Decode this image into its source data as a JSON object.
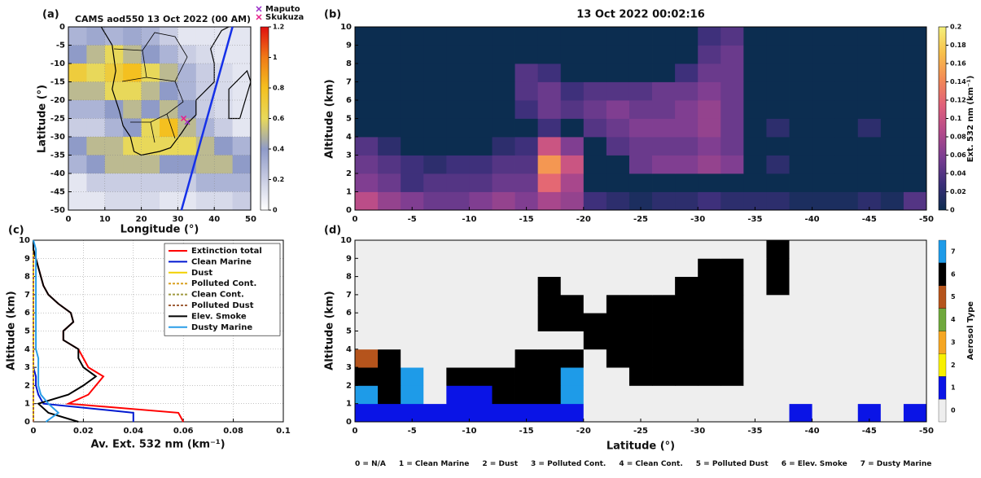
{
  "chart_data": [
    {
      "type": "heatmap",
      "panel_label": "(a)",
      "title": "CAMS aod550 13 Oct 2022 (00 AM)",
      "xlabel": "Longitude (°)",
      "ylabel": "Latitude (°)",
      "x": [
        2.5,
        7.5,
        12.5,
        17.5,
        22.5,
        27.5,
        32.5,
        37.5,
        42.5,
        47.5
      ],
      "y": [
        -2.5,
        -7.5,
        -12.5,
        -17.5,
        -22.5,
        -27.5,
        -32.5,
        -37.5,
        -42.5,
        -47.5
      ],
      "z": [
        [
          0.3,
          0.35,
          0.3,
          0.35,
          0.3,
          0.2,
          0.1,
          0.1,
          0.1,
          0.1
        ],
        [
          0.4,
          0.5,
          0.6,
          0.5,
          0.4,
          0.3,
          0.2,
          0.15,
          0.1,
          0.1
        ],
        [
          0.7,
          0.6,
          0.7,
          0.8,
          0.6,
          0.5,
          0.3,
          0.2,
          0.15,
          0.1
        ],
        [
          0.5,
          0.5,
          0.6,
          0.6,
          0.5,
          0.4,
          0.3,
          0.2,
          0.15,
          0.1
        ],
        [
          0.3,
          0.3,
          0.4,
          0.5,
          0.4,
          0.5,
          0.4,
          0.2,
          0.15,
          0.1
        ],
        [
          0.2,
          0.2,
          0.3,
          0.4,
          0.6,
          0.8,
          0.5,
          0.3,
          0.2,
          0.1
        ],
        [
          0.4,
          0.5,
          0.5,
          0.6,
          0.6,
          0.6,
          0.6,
          0.5,
          0.4,
          0.3
        ],
        [
          0.3,
          0.4,
          0.5,
          0.5,
          0.5,
          0.4,
          0.4,
          0.5,
          0.5,
          0.4
        ],
        [
          0.1,
          0.2,
          0.2,
          0.2,
          0.2,
          0.2,
          0.2,
          0.3,
          0.3,
          0.3
        ],
        [
          0.1,
          0.1,
          0.15,
          0.15,
          0.15,
          0.1,
          0.1,
          0.15,
          0.15,
          0.2
        ]
      ],
      "xlim": [
        0,
        50
      ],
      "xticks": [
        0,
        10,
        20,
        30,
        40,
        50
      ],
      "ylim": [
        -50,
        0
      ],
      "yticks": [
        0,
        -5,
        -10,
        -15,
        -20,
        -25,
        -30,
        -35,
        -40,
        -45,
        -50
      ],
      "grid": true,
      "clim": [
        0,
        1.2
      ],
      "cticks": [
        0,
        0.2,
        0.4,
        0.6,
        0.8,
        1,
        1.2
      ],
      "colormap": [
        "#ffffff",
        "#c9cde3",
        "#8f9bc8",
        "#e8d85a",
        "#f4c020",
        "#f07a18",
        "#e01010"
      ],
      "markers": [
        {
          "name": "Maputo",
          "color": "#9a2fc9",
          "x": 32.6,
          "y": -25.97
        },
        {
          "name": "Skukuza",
          "color": "#e8208c",
          "x": 31.6,
          "y": -24.99
        }
      ],
      "track": {
        "color": "#1530e8",
        "x": [
          31,
          45
        ],
        "y": [
          -50,
          0
        ]
      }
    },
    {
      "type": "heatmap",
      "panel_label": "(b)",
      "title": "13 Oct 2022 00:02:16",
      "ylabel": "Altitude (km)",
      "x": [
        -1,
        -3,
        -5,
        -7,
        -9,
        -11,
        -13,
        -15,
        -17,
        -19,
        -21,
        -23,
        -25,
        -27,
        -29,
        -31,
        -33,
        -35,
        -37,
        -39,
        -41,
        -43,
        -45,
        -47,
        -49
      ],
      "y": [
        0.5,
        1.5,
        2.5,
        3.5,
        4.5,
        5.5,
        6.5,
        7.5,
        8.5,
        9.5
      ],
      "z": [
        [
          0.09,
          0.07,
          0.06,
          0.05,
          0.05,
          0.06,
          0.07,
          0.06,
          0.08,
          0.07,
          0.03,
          0.02,
          0.01,
          0.02,
          0.02,
          0.03,
          0.02,
          0.02,
          0.02,
          0.01,
          0.01,
          0.01,
          0.02,
          0.01,
          0.04
        ],
        [
          0.06,
          0.05,
          0.03,
          0.04,
          0.04,
          0.04,
          0.05,
          0.05,
          0.12,
          0.08,
          0,
          0,
          0,
          0,
          0,
          0,
          0,
          0,
          0,
          0,
          0,
          0,
          0,
          0,
          0
        ],
        [
          0.05,
          0.04,
          0.03,
          0.02,
          0.03,
          0.03,
          0.04,
          0.04,
          0.15,
          0.1,
          0,
          0,
          0.05,
          0.06,
          0.06,
          0.07,
          0.06,
          0,
          0.02,
          0,
          0,
          0,
          0,
          0,
          0
        ],
        [
          0.04,
          0.02,
          0,
          0,
          0,
          0,
          0.02,
          0.03,
          0.1,
          0.06,
          0,
          0.04,
          0.05,
          0.05,
          0.05,
          0.06,
          0.05,
          0,
          0,
          0,
          0,
          0,
          0,
          0,
          0
        ],
        [
          0,
          0,
          0,
          0,
          0,
          0,
          0,
          0,
          0.03,
          0,
          0.04,
          0.05,
          0.06,
          0.06,
          0.06,
          0.07,
          0.05,
          0,
          0.02,
          0,
          0,
          0,
          0.02,
          0,
          0
        ],
        [
          0,
          0,
          0,
          0,
          0,
          0,
          0,
          0.03,
          0.05,
          0.04,
          0.05,
          0.06,
          0.05,
          0.05,
          0.06,
          0.07,
          0.05,
          0,
          0,
          0,
          0,
          0,
          0,
          0,
          0
        ],
        [
          0,
          0,
          0,
          0,
          0,
          0,
          0,
          0.04,
          0.05,
          0.03,
          0.04,
          0.04,
          0.04,
          0.05,
          0.05,
          0.06,
          0.05,
          0,
          0,
          0,
          0,
          0,
          0,
          0,
          0
        ],
        [
          0,
          0,
          0,
          0,
          0,
          0,
          0,
          0.04,
          0.03,
          0,
          0,
          0,
          0,
          0,
          0.03,
          0.05,
          0.05,
          0,
          0,
          0,
          0,
          0,
          0,
          0,
          0
        ],
        [
          0,
          0,
          0,
          0,
          0,
          0,
          0,
          0,
          0,
          0,
          0,
          0,
          0,
          0,
          0,
          0.04,
          0.05,
          0,
          0,
          0,
          0,
          0,
          0,
          0,
          0
        ],
        [
          0,
          0,
          0,
          0,
          0,
          0,
          0,
          0,
          0,
          0,
          0,
          0,
          0,
          0,
          0,
          0.03,
          0.04,
          0,
          0,
          0,
          0,
          0,
          0,
          0,
          0
        ]
      ],
      "xlim": [
        0,
        -50
      ],
      "xticks": [
        0,
        -5,
        -10,
        -15,
        -20,
        -25,
        -30,
        -35,
        -40,
        -45,
        -50
      ],
      "ylim": [
        0,
        10
      ],
      "yticks": [
        0,
        1,
        2,
        3,
        4,
        5,
        6,
        7,
        8,
        9,
        10
      ],
      "clim": [
        0,
        0.2
      ],
      "cticks": [
        0,
        0.02,
        0.04,
        0.06,
        0.08,
        0.1,
        0.12,
        0.14,
        0.16,
        0.18,
        0.2
      ],
      "colorbar_label": "Ext. 532 nm (km⁻¹)",
      "colormap": [
        "#0c2d50",
        "#3b2f7a",
        "#7a3d92",
        "#b44a8a",
        "#e0607a",
        "#f38a55",
        "#f8c04a",
        "#f4f07a"
      ]
    },
    {
      "type": "line",
      "panel_label": "(c)",
      "xlabel": "Av. Ext. 532 nm  (km⁻¹)",
      "ylabel": "Altitude (km)",
      "y": [
        0,
        0.5,
        1,
        1.5,
        2,
        2.5,
        3,
        3.5,
        4,
        4.5,
        5,
        5.5,
        6,
        6.5,
        7,
        7.5,
        8,
        8.5,
        9,
        9.5,
        10
      ],
      "series": [
        {
          "name": "Extinction total",
          "color": "#ff0000",
          "dashed": false,
          "values": [
            0.06,
            0.058,
            0.014,
            0.022,
            0.025,
            0.028,
            0.022,
            0.02,
            0.018,
            0.012,
            0.012,
            0.016,
            0.015,
            0.01,
            0.006,
            0.004,
            0.003,
            0.002,
            0.001,
            0,
            0
          ]
        },
        {
          "name": "Clean Marine",
          "color": "#0018d0",
          "dashed": false,
          "values": [
            0.04,
            0.04,
            0.004,
            0.002,
            0.001,
            0.001,
            0,
            0,
            0,
            0,
            0,
            0,
            0,
            0,
            0,
            0,
            0,
            0,
            0,
            0,
            0
          ]
        },
        {
          "name": "Dust",
          "color": "#f2d000",
          "dashed": false,
          "values": [
            0,
            0,
            0,
            0,
            0,
            0,
            0,
            0,
            0,
            0,
            0,
            0,
            0,
            0,
            0,
            0,
            0,
            0,
            0,
            0,
            0
          ]
        },
        {
          "name": "Polluted Cont.",
          "color": "#d9a020",
          "dashed": true,
          "values": [
            0,
            0,
            0,
            0,
            0,
            0,
            0,
            0,
            0,
            0,
            0,
            0,
            0,
            0,
            0,
            0,
            0,
            0,
            0,
            0,
            0
          ]
        },
        {
          "name": "Clean Cont.",
          "color": "#a09a40",
          "dashed": true,
          "values": [
            0,
            0,
            0,
            0,
            0,
            0,
            0,
            0,
            0,
            0,
            0,
            0,
            0,
            0,
            0,
            0,
            0,
            0,
            0,
            0,
            0
          ]
        },
        {
          "name": "Polluted Dust",
          "color": "#a0603a",
          "dashed": true,
          "values": [
            0,
            0,
            0,
            0,
            0,
            0,
            0,
            0,
            0,
            0,
            0,
            0,
            0,
            0,
            0,
            0,
            0,
            0,
            0,
            0,
            0
          ]
        },
        {
          "name": "Elev. Smoke",
          "color": "#000000",
          "dashed": false,
          "values": [
            0.018,
            0.006,
            0.002,
            0.014,
            0.02,
            0.025,
            0.02,
            0.018,
            0.018,
            0.012,
            0.012,
            0.016,
            0.015,
            0.01,
            0.006,
            0.004,
            0.003,
            0.002,
            0.001,
            0,
            0
          ]
        },
        {
          "name": "Dusty Marine",
          "color": "#2a9ee8",
          "dashed": false,
          "values": [
            0.005,
            0.01,
            0.006,
            0.003,
            0.002,
            0.002,
            0.002,
            0.002,
            0.001,
            0.001,
            0.001,
            0.001,
            0.001,
            0.001,
            0.001,
            0.001,
            0.001,
            0.001,
            0.001,
            0.001,
            0
          ]
        }
      ],
      "xlim": [
        0,
        0.1
      ],
      "xticks": [
        0,
        0.02,
        0.04,
        0.06,
        0.08,
        0.1
      ],
      "ylim": [
        0,
        10
      ],
      "yticks": [
        0,
        1,
        2,
        3,
        4,
        5,
        6,
        7,
        8,
        9,
        10
      ],
      "grid": true,
      "legend": "upper right"
    },
    {
      "type": "categorical_heatmap",
      "panel_label": "(d)",
      "xlabel": "Latitude (°)",
      "ylabel": "Altitude (km)",
      "x": [
        -1,
        -3,
        -5,
        -7,
        -9,
        -11,
        -13,
        -15,
        -17,
        -19,
        -21,
        -23,
        -25,
        -27,
        -29,
        -31,
        -33,
        -35,
        -37,
        -39,
        -41,
        -43,
        -45,
        -47,
        -49
      ],
      "y": [
        0.5,
        1.5,
        2.5,
        3.5,
        4.5,
        5.5,
        6.5,
        7.5,
        8.5,
        9.5
      ],
      "z": [
        [
          1,
          1,
          1,
          1,
          1,
          1,
          1,
          1,
          1,
          1,
          0,
          0,
          0,
          0,
          0,
          0,
          0,
          0,
          0,
          1,
          0,
          0,
          1,
          0,
          1
        ],
        [
          7,
          6,
          7,
          0,
          1,
          1,
          6,
          6,
          6,
          7,
          0,
          0,
          0,
          0,
          0,
          0,
          0,
          0,
          0,
          0,
          0,
          0,
          0,
          0,
          0
        ],
        [
          6,
          6,
          7,
          0,
          6,
          6,
          6,
          6,
          6,
          7,
          0,
          0,
          6,
          6,
          6,
          6,
          6,
          0,
          0,
          0,
          0,
          0,
          0,
          0,
          0
        ],
        [
          5,
          6,
          0,
          0,
          0,
          0,
          0,
          6,
          6,
          6,
          0,
          6,
          6,
          6,
          6,
          6,
          6,
          0,
          0,
          0,
          0,
          0,
          0,
          0,
          0
        ],
        [
          0,
          0,
          0,
          0,
          0,
          0,
          0,
          0,
          0,
          0,
          6,
          6,
          6,
          6,
          6,
          6,
          6,
          0,
          0,
          0,
          0,
          0,
          0,
          0,
          0
        ],
        [
          0,
          0,
          0,
          0,
          0,
          0,
          0,
          0,
          6,
          6,
          6,
          6,
          6,
          6,
          6,
          6,
          6,
          0,
          0,
          0,
          0,
          0,
          0,
          0,
          0
        ],
        [
          0,
          0,
          0,
          0,
          0,
          0,
          0,
          0,
          6,
          6,
          0,
          6,
          6,
          6,
          6,
          6,
          6,
          0,
          0,
          0,
          0,
          0,
          0,
          0,
          0
        ],
        [
          0,
          0,
          0,
          0,
          0,
          0,
          0,
          0,
          6,
          0,
          0,
          0,
          0,
          0,
          6,
          6,
          6,
          0,
          6,
          0,
          0,
          0,
          0,
          0,
          0
        ],
        [
          0,
          0,
          0,
          0,
          0,
          0,
          0,
          0,
          0,
          0,
          0,
          0,
          0,
          0,
          0,
          6,
          6,
          0,
          6,
          0,
          0,
          0,
          0,
          0,
          0
        ],
        [
          0,
          0,
          0,
          0,
          0,
          0,
          0,
          0,
          0,
          0,
          0,
          0,
          0,
          0,
          0,
          0,
          0,
          0,
          6,
          0,
          0,
          0,
          0,
          0,
          0
        ]
      ],
      "xlim": [
        0,
        -50
      ],
      "xticks": [
        0,
        -5,
        -10,
        -15,
        -20,
        -25,
        -30,
        -35,
        -40,
        -45,
        -50
      ],
      "ylim": [
        0,
        10
      ],
      "yticks": [
        0,
        1,
        2,
        3,
        4,
        5,
        6,
        7,
        8,
        9,
        10
      ],
      "colorbar_label": "Aerosol Type",
      "cticks": [
        0,
        1,
        2,
        3,
        4,
        5,
        6,
        7
      ],
      "class_colors": [
        "#eeeeee",
        "#0a14e6",
        "#f8f000",
        "#f5a623",
        "#6fa83c",
        "#b5541c",
        "#000000",
        "#1e9be8"
      ],
      "class_labels": [
        "0 = N/A",
        "1 = Clean Marine",
        "2 = Dust",
        "3 = Polluted Cont.",
        "4 = Clean Cont.",
        "5 = Polluted Dust",
        "6 = Elev. Smoke",
        "7 = Dusty Marine"
      ]
    }
  ]
}
